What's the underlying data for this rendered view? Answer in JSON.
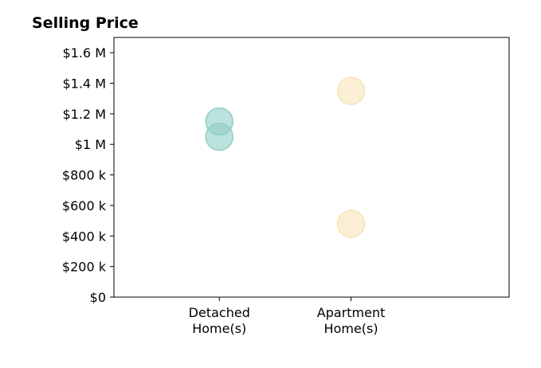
{
  "chart_data": {
    "type": "scatter",
    "title": "Selling Price",
    "xlabel": "",
    "ylabel": "",
    "categories": [
      [
        "Detached",
        "Home(s)"
      ],
      [
        "Apartment",
        "Home(s)"
      ]
    ],
    "x_range": [
      -0.8,
      2.2
    ],
    "ylim": [
      0,
      1700000
    ],
    "y_ticks": [
      0,
      200000,
      400000,
      600000,
      800000,
      1000000,
      1200000,
      1400000,
      1600000
    ],
    "y_tick_labels": [
      "$0",
      "$200 k",
      "$400 k",
      "$600 k",
      "$800 k",
      "$1 M",
      "$1.2 M",
      "$1.4 M",
      "$1.6 M"
    ],
    "grid": false,
    "series": [
      {
        "color": "#8ecfc4",
        "points": [
          {
            "x": 0,
            "y": 1150000
          },
          {
            "x": 0,
            "y": 1050000
          }
        ]
      },
      {
        "color": "#f6e4b8",
        "points": [
          {
            "x": 1,
            "y": 1350000
          },
          {
            "x": 1,
            "y": 480000
          }
        ]
      }
    ]
  }
}
